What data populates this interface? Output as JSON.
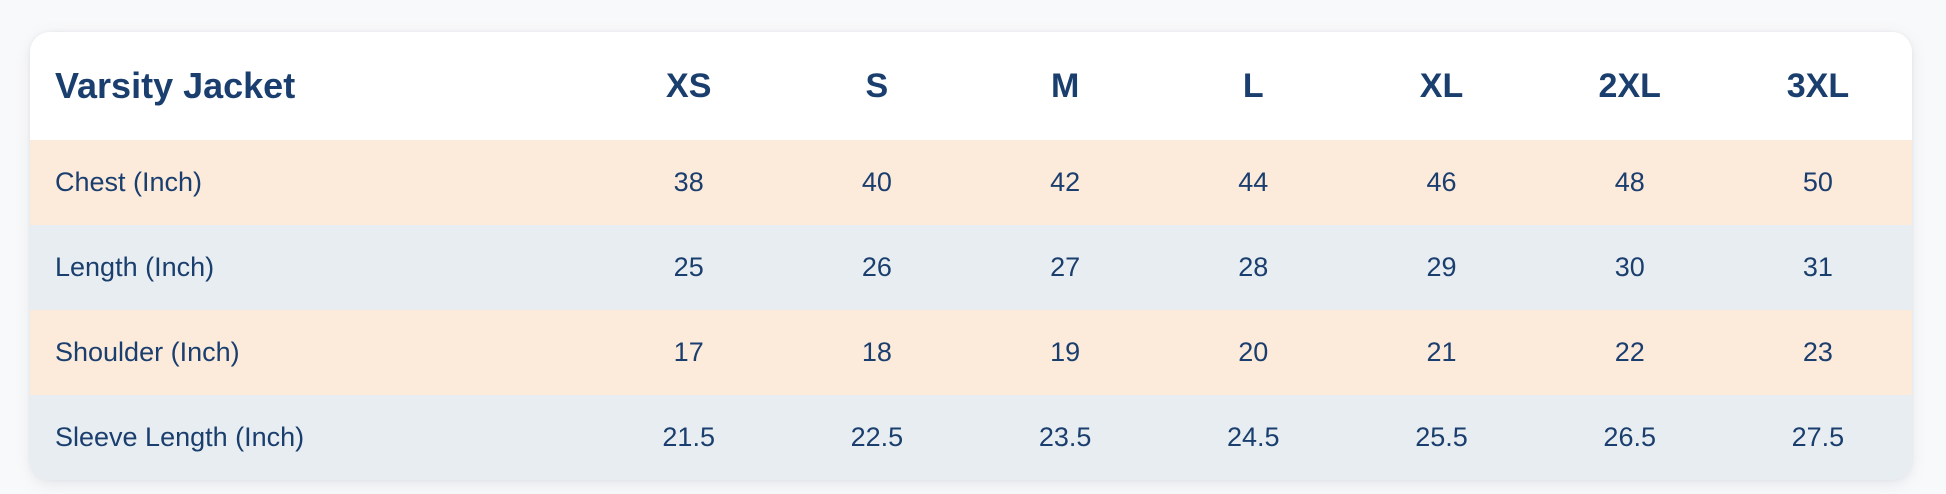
{
  "chart_data": {
    "type": "table",
    "title": "Varsity Jacket",
    "columns": [
      "XS",
      "S",
      "M",
      "L",
      "XL",
      "2XL",
      "3XL"
    ],
    "rows": [
      {
        "label": "Chest (Inch)",
        "values": [
          "38",
          "40",
          "42",
          "44",
          "46",
          "48",
          "50"
        ]
      },
      {
        "label": "Length (Inch)",
        "values": [
          "25",
          "26",
          "27",
          "28",
          "29",
          "30",
          "31"
        ]
      },
      {
        "label": "Shoulder (Inch)",
        "values": [
          "17",
          "18",
          "19",
          "20",
          "21",
          "22",
          "23"
        ]
      },
      {
        "label": "Sleeve Length (Inch)",
        "values": [
          "21.5",
          "22.5",
          "23.5",
          "24.5",
          "25.5",
          "26.5",
          "27.5"
        ]
      }
    ]
  },
  "colors": {
    "text_navy": "#1a3e6e",
    "row_peach": "#fceadb",
    "row_blue": "#e8edf1",
    "card_bg": "#ffffff",
    "page_bg": "#f8f9fa"
  }
}
